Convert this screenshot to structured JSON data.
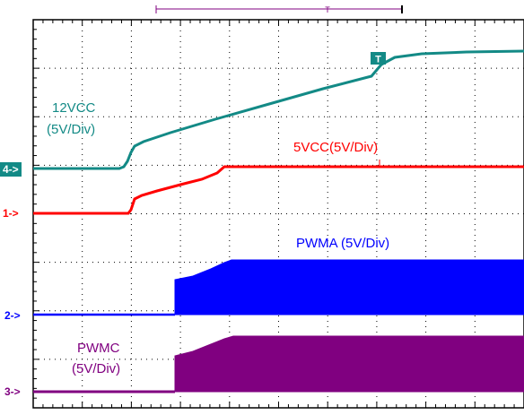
{
  "chart_data": {
    "type": "line",
    "title": "",
    "xlabel": "",
    "ylabel": "",
    "grid": true,
    "divisions": {
      "x": 10,
      "y": 8
    },
    "x": [
      0,
      0.5,
      1.0,
      1.5,
      2.0,
      2.5,
      3.0,
      3.5,
      4.0,
      4.5,
      5.0,
      5.5,
      6.0,
      6.5,
      7.0,
      7.5,
      8.0,
      8.5,
      9.0,
      9.5,
      10.0
    ],
    "series": [
      {
        "name": "12VCC",
        "label": "12VCC",
        "label_scale": "(5V/Div)",
        "marker": "4->",
        "color": "#138a86",
        "values": [
          0,
          0,
          0,
          0,
          0,
          0,
          0,
          0,
          0,
          0,
          0,
          0,
          0,
          0,
          0,
          0,
          0,
          0,
          0,
          0,
          0
        ]
      },
      {
        "name": "5VCC",
        "label": "5VCC(5V/Div)",
        "marker": "1->",
        "color": "#ff0000",
        "values": [
          0,
          0,
          0,
          0,
          0,
          0,
          0,
          0,
          0,
          0,
          0,
          0,
          0,
          0,
          0,
          0,
          0,
          0,
          0,
          0,
          0
        ]
      },
      {
        "name": "PWMA",
        "label": "PWMA (5V/Div)",
        "marker": "2->",
        "color": "#0000ff",
        "values": [
          0,
          0,
          0,
          0,
          0,
          0,
          0,
          0,
          0,
          0,
          0,
          0,
          0,
          0,
          0,
          0,
          0,
          0,
          0,
          0,
          0
        ]
      },
      {
        "name": "PWMC",
        "label": "PWMC",
        "label_scale": "(5V/Div)",
        "marker": "3->",
        "color": "#800080",
        "values": [
          0,
          0,
          0,
          0,
          0,
          0,
          0,
          0,
          0,
          0,
          0,
          0,
          0,
          0,
          0,
          0,
          0,
          0,
          0,
          0,
          0
        ]
      }
    ],
    "trigger_marker": "T"
  },
  "colors": {
    "grid": "#000000",
    "cursor_bar": "#800080"
  }
}
